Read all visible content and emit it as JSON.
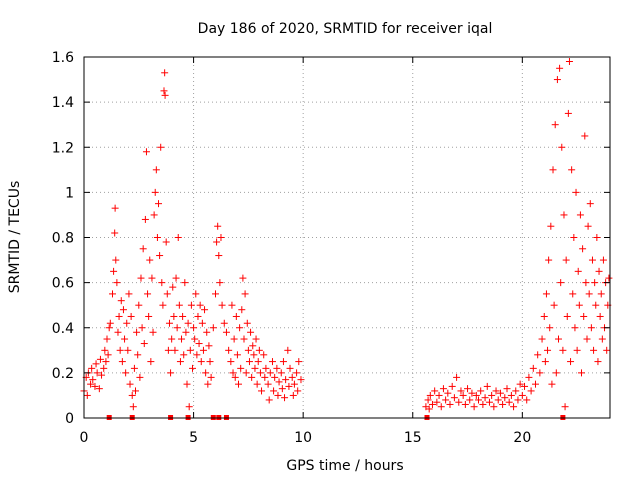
{
  "chart_data": {
    "type": "scatter",
    "title": "Day 186 of 2020, SRMTID for receiver iqal",
    "xlabel": "GPS time / hours",
    "ylabel": "SRMTID / TECUs",
    "xlim": [
      0,
      24
    ],
    "ylim": [
      0,
      1.6
    ],
    "xticks": [
      0,
      5,
      10,
      15,
      20
    ],
    "yticks": [
      0,
      0.2,
      0.4,
      0.6,
      0.8,
      1,
      1.2,
      1.4,
      1.6
    ],
    "xtick_labels": [
      "0",
      "5",
      "10",
      "15",
      "20"
    ],
    "ytick_labels": [
      "0",
      "0.2",
      "0.4",
      "0.6",
      "0.8",
      "1",
      "1.2",
      "1.4",
      "1.6"
    ],
    "marker": "plus",
    "color": "#ff0000",
    "grid": true,
    "series": [
      {
        "name": "SRMTID",
        "points": [
          [
            0.0,
            0.12
          ],
          [
            0.1,
            0.18
          ],
          [
            0.15,
            0.1
          ],
          [
            0.2,
            0.2
          ],
          [
            0.3,
            0.15
          ],
          [
            0.35,
            0.22
          ],
          [
            0.4,
            0.17
          ],
          [
            0.5,
            0.14
          ],
          [
            0.55,
            0.24
          ],
          [
            0.6,
            0.2
          ],
          [
            0.7,
            0.13
          ],
          [
            0.75,
            0.26
          ],
          [
            0.8,
            0.19
          ],
          [
            0.9,
            0.22
          ],
          [
            0.95,
            0.3
          ],
          [
            1.0,
            0.25
          ],
          [
            1.05,
            0.35
          ],
          [
            1.1,
            0.28
          ],
          [
            1.15,
            0.4
          ],
          [
            1.2,
            0.42
          ],
          [
            1.3,
            0.55
          ],
          [
            1.35,
            0.65
          ],
          [
            1.4,
            0.82
          ],
          [
            1.42,
            0.93
          ],
          [
            1.45,
            0.7
          ],
          [
            1.5,
            0.6
          ],
          [
            1.55,
            0.38
          ],
          [
            1.6,
            0.45
          ],
          [
            1.65,
            0.3
          ],
          [
            1.7,
            0.52
          ],
          [
            1.75,
            0.25
          ],
          [
            1.8,
            0.48
          ],
          [
            1.85,
            0.35
          ],
          [
            1.9,
            0.2
          ],
          [
            1.95,
            0.42
          ],
          [
            2.0,
            0.3
          ],
          [
            2.05,
            0.55
          ],
          [
            2.1,
            0.15
          ],
          [
            2.15,
            0.45
          ],
          [
            2.2,
            0.1
          ],
          [
            2.25,
            0.05
          ],
          [
            2.3,
            0.22
          ],
          [
            2.35,
            0.12
          ],
          [
            2.4,
            0.38
          ],
          [
            2.45,
            0.28
          ],
          [
            2.5,
            0.5
          ],
          [
            2.55,
            0.18
          ],
          [
            2.6,
            0.62
          ],
          [
            2.65,
            0.4
          ],
          [
            2.7,
            0.75
          ],
          [
            2.75,
            0.33
          ],
          [
            2.8,
            0.88
          ],
          [
            2.85,
            1.18
          ],
          [
            2.9,
            0.55
          ],
          [
            2.95,
            0.45
          ],
          [
            3.0,
            0.7
          ],
          [
            3.05,
            0.25
          ],
          [
            3.1,
            0.62
          ],
          [
            3.15,
            0.38
          ],
          [
            3.2,
            0.9
          ],
          [
            3.25,
            1.0
          ],
          [
            3.3,
            1.1
          ],
          [
            3.35,
            0.8
          ],
          [
            3.4,
            0.95
          ],
          [
            3.45,
            0.72
          ],
          [
            3.5,
            1.2
          ],
          [
            3.55,
            0.6
          ],
          [
            3.6,
            0.5
          ],
          [
            3.65,
            1.45
          ],
          [
            3.68,
            1.53
          ],
          [
            3.7,
            1.43
          ],
          [
            3.75,
            0.78
          ],
          [
            3.8,
            0.55
          ],
          [
            3.85,
            0.3
          ],
          [
            3.9,
            0.42
          ],
          [
            3.95,
            0.2
          ],
          [
            4.0,
            0.35
          ],
          [
            4.05,
            0.58
          ],
          [
            4.1,
            0.45
          ],
          [
            4.15,
            0.3
          ],
          [
            4.2,
            0.62
          ],
          [
            4.25,
            0.4
          ],
          [
            4.3,
            0.8
          ],
          [
            4.35,
            0.5
          ],
          [
            4.4,
            0.25
          ],
          [
            4.45,
            0.35
          ],
          [
            4.5,
            0.45
          ],
          [
            4.55,
            0.28
          ],
          [
            4.6,
            0.6
          ],
          [
            4.65,
            0.38
          ],
          [
            4.7,
            0.15
          ],
          [
            4.75,
            0.42
          ],
          [
            4.8,
            0.05
          ],
          [
            4.85,
            0.3
          ],
          [
            4.9,
            0.5
          ],
          [
            4.95,
            0.22
          ],
          [
            5.0,
            0.4
          ],
          [
            5.05,
            0.35
          ],
          [
            5.1,
            0.55
          ],
          [
            5.15,
            0.28
          ],
          [
            5.2,
            0.45
          ],
          [
            5.25,
            0.33
          ],
          [
            5.3,
            0.5
          ],
          [
            5.35,
            0.25
          ],
          [
            5.4,
            0.42
          ],
          [
            5.45,
            0.3
          ],
          [
            5.5,
            0.48
          ],
          [
            5.55,
            0.2
          ],
          [
            5.6,
            0.38
          ],
          [
            5.65,
            0.15
          ],
          [
            5.7,
            0.32
          ],
          [
            5.75,
            0.25
          ],
          [
            5.8,
            0.18
          ],
          [
            5.9,
            0.4
          ],
          [
            6.0,
            0.55
          ],
          [
            6.05,
            0.78
          ],
          [
            6.1,
            0.85
          ],
          [
            6.15,
            0.72
          ],
          [
            6.2,
            0.6
          ],
          [
            6.25,
            0.8
          ],
          [
            6.3,
            0.5
          ],
          [
            6.4,
            0.42
          ],
          [
            6.5,
            0.38
          ],
          [
            6.6,
            0.3
          ],
          [
            6.7,
            0.25
          ],
          [
            6.75,
            0.5
          ],
          [
            6.8,
            0.2
          ],
          [
            6.85,
            0.35
          ],
          [
            6.9,
            0.18
          ],
          [
            6.95,
            0.45
          ],
          [
            7.0,
            0.28
          ],
          [
            7.05,
            0.15
          ],
          [
            7.1,
            0.4
          ],
          [
            7.15,
            0.22
          ],
          [
            7.2,
            0.48
          ],
          [
            7.25,
            0.62
          ],
          [
            7.3,
            0.35
          ],
          [
            7.35,
            0.55
          ],
          [
            7.4,
            0.2
          ],
          [
            7.45,
            0.42
          ],
          [
            7.5,
            0.3
          ],
          [
            7.55,
            0.25
          ],
          [
            7.6,
            0.38
          ],
          [
            7.65,
            0.18
          ],
          [
            7.7,
            0.32
          ],
          [
            7.75,
            0.28
          ],
          [
            7.8,
            0.22
          ],
          [
            7.85,
            0.35
          ],
          [
            7.9,
            0.15
          ],
          [
            7.95,
            0.25
          ],
          [
            8.0,
            0.3
          ],
          [
            8.05,
            0.2
          ],
          [
            8.1,
            0.12
          ],
          [
            8.2,
            0.28
          ],
          [
            8.25,
            0.18
          ],
          [
            8.3,
            0.22
          ],
          [
            8.4,
            0.15
          ],
          [
            8.45,
            0.08
          ],
          [
            8.5,
            0.2
          ],
          [
            8.6,
            0.25
          ],
          [
            8.65,
            0.12
          ],
          [
            8.7,
            0.18
          ],
          [
            8.8,
            0.22
          ],
          [
            8.85,
            0.1
          ],
          [
            8.9,
            0.16
          ],
          [
            9.0,
            0.2
          ],
          [
            9.05,
            0.13
          ],
          [
            9.1,
            0.25
          ],
          [
            9.15,
            0.09
          ],
          [
            9.2,
            0.17
          ],
          [
            9.3,
            0.3
          ],
          [
            9.35,
            0.14
          ],
          [
            9.4,
            0.22
          ],
          [
            9.5,
            0.18
          ],
          [
            9.55,
            0.1
          ],
          [
            9.6,
            0.15
          ],
          [
            9.7,
            0.2
          ],
          [
            9.75,
            0.12
          ],
          [
            9.8,
            0.25
          ],
          [
            9.9,
            0.17
          ],
          [
            15.6,
            0.05
          ],
          [
            15.7,
            0.08
          ],
          [
            15.75,
            0.04
          ],
          [
            15.8,
            0.1
          ],
          [
            15.9,
            0.06
          ],
          [
            16.0,
            0.12
          ],
          [
            16.1,
            0.07
          ],
          [
            16.2,
            0.1
          ],
          [
            16.3,
            0.05
          ],
          [
            16.4,
            0.13
          ],
          [
            16.5,
            0.08
          ],
          [
            16.6,
            0.11
          ],
          [
            16.7,
            0.06
          ],
          [
            16.8,
            0.14
          ],
          [
            16.9,
            0.09
          ],
          [
            17.0,
            0.18
          ],
          [
            17.1,
            0.07
          ],
          [
            17.2,
            0.12
          ],
          [
            17.3,
            0.1
          ],
          [
            17.4,
            0.06
          ],
          [
            17.5,
            0.13
          ],
          [
            17.6,
            0.08
          ],
          [
            17.7,
            0.11
          ],
          [
            17.8,
            0.05
          ],
          [
            17.9,
            0.1
          ],
          [
            18.0,
            0.08
          ],
          [
            18.1,
            0.12
          ],
          [
            18.2,
            0.06
          ],
          [
            18.3,
            0.09
          ],
          [
            18.4,
            0.14
          ],
          [
            18.5,
            0.07
          ],
          [
            18.6,
            0.1
          ],
          [
            18.7,
            0.05
          ],
          [
            18.8,
            0.12
          ],
          [
            18.9,
            0.08
          ],
          [
            19.0,
            0.11
          ],
          [
            19.1,
            0.06
          ],
          [
            19.2,
            0.09
          ],
          [
            19.3,
            0.13
          ],
          [
            19.4,
            0.07
          ],
          [
            19.5,
            0.1
          ],
          [
            19.6,
            0.05
          ],
          [
            19.7,
            0.12
          ],
          [
            19.8,
            0.08
          ],
          [
            19.9,
            0.15
          ],
          [
            20.0,
            0.1
          ],
          [
            20.1,
            0.14
          ],
          [
            20.2,
            0.08
          ],
          [
            20.3,
            0.18
          ],
          [
            20.4,
            0.12
          ],
          [
            20.5,
            0.22
          ],
          [
            20.6,
            0.15
          ],
          [
            20.7,
            0.28
          ],
          [
            20.8,
            0.2
          ],
          [
            20.9,
            0.35
          ],
          [
            21.0,
            0.45
          ],
          [
            21.05,
            0.25
          ],
          [
            21.1,
            0.55
          ],
          [
            21.15,
            0.3
          ],
          [
            21.2,
            0.7
          ],
          [
            21.25,
            0.4
          ],
          [
            21.3,
            0.85
          ],
          [
            21.35,
            0.15
          ],
          [
            21.4,
            1.1
          ],
          [
            21.45,
            0.5
          ],
          [
            21.5,
            1.3
          ],
          [
            21.55,
            0.2
          ],
          [
            21.6,
            1.5
          ],
          [
            21.65,
            0.35
          ],
          [
            21.7,
            1.55
          ],
          [
            21.75,
            0.6
          ],
          [
            21.8,
            1.2
          ],
          [
            21.85,
            0.3
          ],
          [
            21.9,
            0.9
          ],
          [
            21.95,
            0.05
          ],
          [
            22.0,
            0.7
          ],
          [
            22.05,
            0.45
          ],
          [
            22.1,
            1.35
          ],
          [
            22.15,
            1.58
          ],
          [
            22.2,
            0.25
          ],
          [
            22.25,
            1.1
          ],
          [
            22.3,
            0.55
          ],
          [
            22.35,
            0.8
          ],
          [
            22.4,
            0.4
          ],
          [
            22.45,
            1.0
          ],
          [
            22.5,
            0.3
          ],
          [
            22.55,
            0.65
          ],
          [
            22.6,
            0.5
          ],
          [
            22.65,
            0.9
          ],
          [
            22.7,
            0.2
          ],
          [
            22.75,
            0.75
          ],
          [
            22.8,
            0.45
          ],
          [
            22.85,
            1.25
          ],
          [
            22.9,
            0.6
          ],
          [
            22.95,
            0.35
          ],
          [
            23.0,
            0.85
          ],
          [
            23.05,
            0.55
          ],
          [
            23.1,
            0.95
          ],
          [
            23.15,
            0.4
          ],
          [
            23.2,
            0.7
          ],
          [
            23.25,
            0.3
          ],
          [
            23.3,
            0.6
          ],
          [
            23.35,
            0.5
          ],
          [
            23.4,
            0.8
          ],
          [
            23.45,
            0.25
          ],
          [
            23.5,
            0.65
          ],
          [
            23.55,
            0.45
          ],
          [
            23.6,
            0.55
          ],
          [
            23.65,
            0.35
          ],
          [
            23.7,
            0.7
          ],
          [
            23.75,
            0.4
          ],
          [
            23.8,
            0.6
          ],
          [
            23.85,
            0.3
          ],
          [
            23.9,
            0.5
          ],
          [
            23.95,
            0.62
          ]
        ]
      }
    ],
    "zero_points": [
      1.15,
      2.2,
      3.95,
      4.75,
      5.9,
      6.15,
      6.5,
      15.65,
      21.85
    ]
  }
}
